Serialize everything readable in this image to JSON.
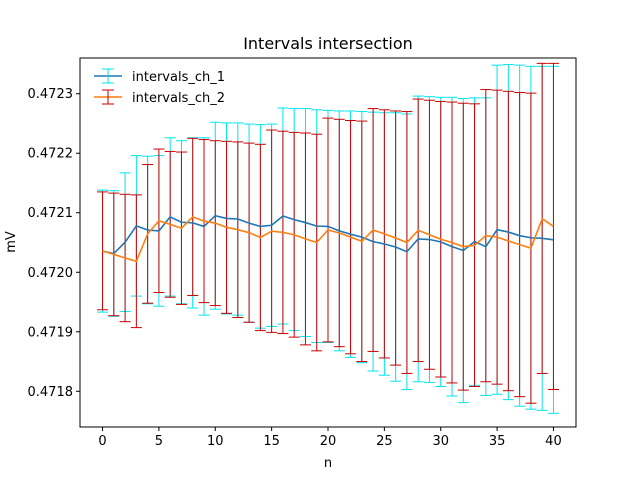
{
  "chart_data": {
    "type": "line",
    "title": "Intervals intersection",
    "xlabel": "n",
    "ylabel": "mV",
    "xlim": [
      -2,
      42
    ],
    "ylim": [
      0.47174,
      0.47236
    ],
    "x_ticks": [
      0,
      5,
      10,
      15,
      20,
      25,
      30,
      35,
      40
    ],
    "y_ticks": [
      0.4718,
      0.4719,
      0.472,
      0.4721,
      0.4722,
      0.4723
    ],
    "x_tick_labels": [
      "0",
      "5",
      "10",
      "15",
      "20",
      "25",
      "30",
      "35",
      "40"
    ],
    "y_tick_labels": [
      "0.4718",
      "0.4719",
      "0.4720",
      "0.4721",
      "0.4722",
      "0.4723"
    ],
    "grid": false,
    "legend_position": "top-left",
    "series": [
      {
        "name": "intervals_ch_1",
        "color": "#1f77b4",
        "errcolor": "#00e5ee",
        "x": [
          0,
          1,
          2,
          3,
          4,
          5,
          6,
          7,
          8,
          9,
          10,
          11,
          12,
          13,
          14,
          15,
          16,
          17,
          18,
          19,
          20,
          21,
          22,
          23,
          24,
          25,
          26,
          27,
          28,
          29,
          30,
          31,
          32,
          33,
          34,
          35,
          36,
          37,
          38,
          39,
          40
        ],
        "lower": [
          0.471933,
          0.471926,
          0.471934,
          0.47196,
          0.471947,
          0.471943,
          0.47196,
          0.471947,
          0.47194,
          0.471928,
          0.471938,
          0.47193,
          0.471928,
          0.471916,
          0.471906,
          0.471909,
          0.471913,
          0.471902,
          0.471892,
          0.471882,
          0.471882,
          0.471868,
          0.471857,
          0.471848,
          0.471834,
          0.471827,
          0.471817,
          0.471803,
          0.471816,
          0.471815,
          0.471808,
          0.471792,
          0.471781,
          0.47181,
          0.471793,
          0.471795,
          0.471786,
          0.471775,
          0.47177,
          0.471768,
          0.471763
        ],
        "upper": [
          0.472138,
          0.472137,
          0.472167,
          0.472196,
          0.472195,
          0.472196,
          0.472226,
          0.472221,
          0.472226,
          0.472226,
          0.472252,
          0.472251,
          0.472251,
          0.472249,
          0.472248,
          0.472249,
          0.472276,
          0.472275,
          0.472275,
          0.472273,
          0.472272,
          0.472271,
          0.472271,
          0.47227,
          0.472269,
          0.472268,
          0.472268,
          0.472266,
          0.472296,
          0.472295,
          0.472294,
          0.472294,
          0.472292,
          0.472293,
          0.472293,
          0.472348,
          0.472349,
          0.472348,
          0.472346,
          0.472346,
          0.472346
        ],
        "values": [
          0.4720355,
          0.4720315,
          0.4720505,
          0.472078,
          0.472071,
          0.4720695,
          0.472093,
          0.472084,
          0.472083,
          0.472077,
          0.472095,
          0.4720905,
          0.4720895,
          0.4720825,
          0.472077,
          0.472079,
          0.4720945,
          0.4720885,
          0.4720835,
          0.4720775,
          0.472077,
          0.4720695,
          0.472064,
          0.472059,
          0.4720515,
          0.4720475,
          0.4720425,
          0.4720345,
          0.472056,
          0.472055,
          0.472051,
          0.472043,
          0.4720365,
          0.4720515,
          0.472043,
          0.4720715,
          0.4720675,
          0.4720615,
          0.472058,
          0.472057,
          0.4720545
        ]
      },
      {
        "name": "intervals_ch_2",
        "color": "#ff7f0e",
        "errcolor": "#cc0000",
        "x": [
          0,
          1,
          2,
          3,
          4,
          5,
          6,
          7,
          8,
          9,
          10,
          11,
          12,
          13,
          14,
          15,
          16,
          17,
          18,
          19,
          20,
          21,
          22,
          23,
          24,
          25,
          26,
          27,
          28,
          29,
          30,
          31,
          32,
          33,
          34,
          35,
          36,
          37,
          38,
          39,
          40
        ],
        "lower": [
          0.471937,
          0.471927,
          0.471917,
          0.471907,
          0.471948,
          0.471966,
          0.471958,
          0.471946,
          0.471961,
          0.471949,
          0.471944,
          0.471931,
          0.471924,
          0.471916,
          0.471902,
          0.471899,
          0.471897,
          0.471891,
          0.471878,
          0.471868,
          0.471883,
          0.471875,
          0.471863,
          0.47185,
          0.471867,
          0.471856,
          0.471844,
          0.47183,
          0.47185,
          0.471837,
          0.471824,
          0.471814,
          0.471802,
          0.471808,
          0.471816,
          0.471812,
          0.471801,
          0.471791,
          0.47178,
          0.47183,
          0.471803
        ],
        "upper": [
          0.472135,
          0.472133,
          0.472131,
          0.47213,
          0.472181,
          0.472207,
          0.472203,
          0.472202,
          0.472225,
          0.472223,
          0.472221,
          0.47222,
          0.472219,
          0.472217,
          0.472215,
          0.472239,
          0.472237,
          0.472235,
          0.472234,
          0.472232,
          0.472259,
          0.472257,
          0.472255,
          0.472254,
          0.472275,
          0.472273,
          0.472271,
          0.47227,
          0.472291,
          0.472289,
          0.472287,
          0.472286,
          0.472284,
          0.472283,
          0.472307,
          0.472306,
          0.472304,
          0.472302,
          0.472301,
          0.472351,
          0.472351
        ],
        "values": [
          0.472036,
          0.47203,
          0.472024,
          0.4720185,
          0.4720645,
          0.4720865,
          0.4720805,
          0.472074,
          0.472093,
          0.472086,
          0.4720825,
          0.4720755,
          0.4720715,
          0.4720665,
          0.4720585,
          0.472069,
          0.472067,
          0.472063,
          0.472056,
          0.47205,
          0.472071,
          0.472066,
          0.472059,
          0.472052,
          0.472071,
          0.4720645,
          0.4720575,
          0.47205,
          0.4720705,
          0.472063,
          0.4720555,
          0.47205,
          0.472043,
          0.4720455,
          0.4720615,
          0.472059,
          0.4720525,
          0.4720465,
          0.4720405,
          0.47209,
          0.472077
        ]
      }
    ]
  }
}
